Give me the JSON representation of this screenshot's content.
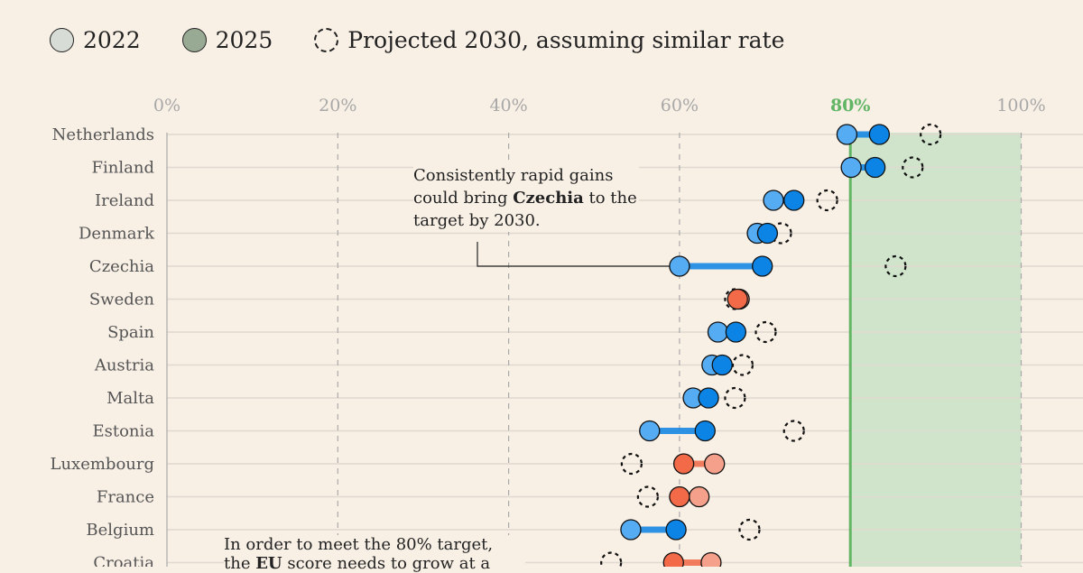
{
  "legend": {
    "items": [
      {
        "label": "2022",
        "color": "#d8dcd6"
      },
      {
        "label": "2025",
        "color": "#99aa94"
      },
      {
        "label": "Projected 2030, assuming similar rate",
        "color": "none"
      }
    ]
  },
  "annotations": {
    "czechia": {
      "pre": "Consistently rapid gains could bring ",
      "bold": "Czechia",
      "post": " to the target by 2030."
    },
    "eu": {
      "line1": "In order to meet the 80% target,",
      "pre2": "the ",
      "bold2": "EU",
      "post2": " score needs to grow at a"
    }
  },
  "colors": {
    "increase_2022": "#55acf3",
    "increase_2025": "#0c84e6",
    "decrease_2022": "#f5a08a",
    "decrease_2025": "#f26a47",
    "target_line": "#62b565",
    "target_area": "#cfe4cb",
    "background": "#f8efe5"
  },
  "chart_data": {
    "type": "dumbbell",
    "xlim": [
      0,
      100
    ],
    "x_ticks": [
      "0%",
      "20%",
      "40%",
      "60%",
      "80%",
      "100%"
    ],
    "target": {
      "value": 80,
      "label": "80%"
    },
    "grid": "vertical dashed",
    "legend_position": "top-left",
    "series_names": [
      "2022",
      "2025",
      "Projected 2030, assuming similar rate"
    ],
    "categories": [
      "Netherlands",
      "Finland",
      "Ireland",
      "Denmark",
      "Czechia",
      "Sweden",
      "Spain",
      "Austria",
      "Malta",
      "Estonia",
      "Luxembourg",
      "France",
      "Belgium",
      "Croatia"
    ],
    "rows": [
      {
        "country": "Netherlands",
        "y2022": 79.6,
        "y2025": 83.4,
        "y2030": 89.4
      },
      {
        "country": "Finland",
        "y2022": 80.1,
        "y2025": 82.9,
        "y2030": 87.3
      },
      {
        "country": "Ireland",
        "y2022": 71.0,
        "y2025": 73.4,
        "y2030": 77.3
      },
      {
        "country": "Denmark",
        "y2022": 69.1,
        "y2025": 70.3,
        "y2030": 71.9
      },
      {
        "country": "Czechia",
        "y2022": 60.0,
        "y2025": 69.7,
        "y2030": 85.3
      },
      {
        "country": "Sweden",
        "y2022": 67.0,
        "y2025": 66.8,
        "y2030": 66.5
      },
      {
        "country": "Spain",
        "y2022": 64.5,
        "y2025": 66.6,
        "y2030": 70.1
      },
      {
        "country": "Austria",
        "y2022": 63.8,
        "y2025": 65.0,
        "y2030": 67.4
      },
      {
        "country": "Malta",
        "y2022": 61.6,
        "y2025": 63.4,
        "y2030": 66.5
      },
      {
        "country": "Estonia",
        "y2022": 56.5,
        "y2025": 63.0,
        "y2030": 73.4
      },
      {
        "country": "Luxembourg",
        "y2022": 64.1,
        "y2025": 60.5,
        "y2030": 54.4
      },
      {
        "country": "France",
        "y2022": 62.3,
        "y2025": 60.0,
        "y2030": 56.3
      },
      {
        "country": "Belgium",
        "y2022": 54.3,
        "y2025": 59.6,
        "y2030": 68.2
      },
      {
        "country": "Croatia",
        "y2022": 63.7,
        "y2025": 59.3,
        "y2030": 52.0
      }
    ]
  }
}
